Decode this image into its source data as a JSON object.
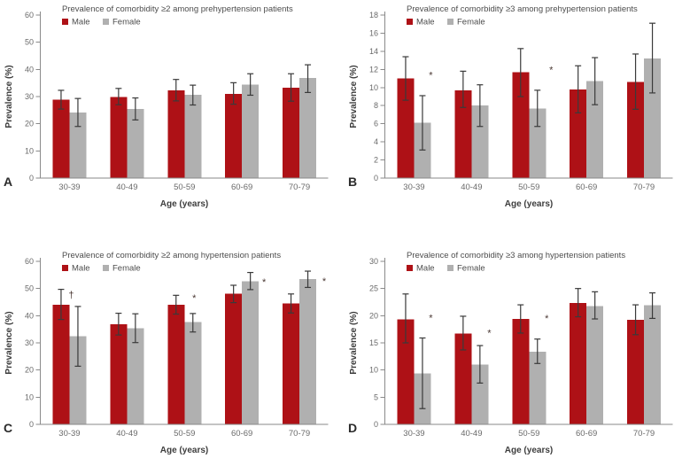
{
  "figure": {
    "background": "#ffffff",
    "colors": {
      "male": "#ae1116",
      "female": "#b0b0b0",
      "error_bar": "#3a3a3a",
      "axis": "#8a8a8a",
      "tick_text": "#6a6a6a",
      "title_text": "#4d4d4d",
      "label_text": "#3d3d3d",
      "annotation": "#4a3833",
      "panel_letter": "#2b2b2b"
    }
  },
  "chart_data": [
    {
      "type": "bar",
      "panel_label": "A",
      "title": "Prevalence of comorbidity ≥2 among prehypertension patients",
      "xlabel": "Age (years)",
      "ylabel": "Prevalence (%)",
      "ylim": [
        0,
        60
      ],
      "ytick_step": 10,
      "legend_position": "top-left-inside",
      "grid": false,
      "categories": [
        "30-39",
        "40-49",
        "50-59",
        "60-69",
        "70-79"
      ],
      "series": [
        {
          "name": "Male",
          "values": [
            28.8,
            29.9,
            32.3,
            31.0,
            33.3
          ],
          "ci_low": [
            25.4,
            27.0,
            28.4,
            27.2,
            28.3
          ],
          "ci_high": [
            32.3,
            33.0,
            36.3,
            35.1,
            38.4
          ]
        },
        {
          "name": "Female",
          "values": [
            24.1,
            25.5,
            30.6,
            34.4,
            36.9
          ],
          "ci_low": [
            19.0,
            21.4,
            26.9,
            30.5,
            31.5
          ],
          "ci_high": [
            29.3,
            29.5,
            34.2,
            38.4,
            41.7
          ]
        }
      ],
      "annotations": []
    },
    {
      "type": "bar",
      "panel_label": "B",
      "title": "Prevalence of comorbidity ≥3 among prehypertension patients",
      "xlabel": "Age (years)",
      "ylabel": "Prevalence (%)",
      "ylim": [
        0,
        18
      ],
      "ytick_step": 2,
      "legend_position": "top-left-inside",
      "grid": false,
      "categories": [
        "30-39",
        "40-49",
        "50-59",
        "60-69",
        "70-79"
      ],
      "series": [
        {
          "name": "Male",
          "values": [
            11.0,
            9.7,
            11.7,
            9.8,
            10.6
          ],
          "ci_low": [
            8.6,
            7.8,
            9.0,
            7.2,
            7.6
          ],
          "ci_high": [
            13.4,
            11.8,
            14.3,
            12.4,
            13.7
          ]
        },
        {
          "name": "Female",
          "values": [
            6.1,
            8.0,
            7.7,
            10.7,
            13.2
          ],
          "ci_low": [
            3.1,
            5.7,
            5.7,
            8.1,
            9.4
          ],
          "ci_high": [
            9.1,
            10.3,
            9.7,
            13.3,
            17.1
          ]
        }
      ],
      "annotations": [
        {
          "group": 0,
          "category": "30-39",
          "symbol": "*",
          "y": 11.6,
          "dx": 19
        },
        {
          "group": 2,
          "category": "50-59",
          "symbol": "*",
          "y": 12.2,
          "dx": 25
        }
      ]
    },
    {
      "type": "bar",
      "panel_label": "C",
      "title": "Prevalence of comorbidity ≥2 among hypertension patients",
      "xlabel": "Age (years)",
      "ylabel": "Prevalence (%)",
      "ylim": [
        0,
        60
      ],
      "ytick_step": 10,
      "legend_position": "top-left-inside",
      "grid": false,
      "categories": [
        "30-39",
        "40-49",
        "50-59",
        "60-69",
        "70-79"
      ],
      "series": [
        {
          "name": "Male",
          "values": [
            44.1,
            36.9,
            44.1,
            48.1,
            44.5
          ],
          "ci_low": [
            38.6,
            32.9,
            40.6,
            44.8,
            41.0
          ],
          "ci_high": [
            49.7,
            40.9,
            47.5,
            51.2,
            48.0
          ]
        },
        {
          "name": "Female",
          "values": [
            32.4,
            35.3,
            37.6,
            52.7,
            53.4
          ],
          "ci_low": [
            21.4,
            30.1,
            34.0,
            49.6,
            50.4
          ],
          "ci_high": [
            43.4,
            40.7,
            40.8,
            55.9,
            56.4
          ]
        }
      ],
      "annotations": [
        {
          "group": 0,
          "category": "30-39",
          "symbol": "†",
          "y": 47.8,
          "dx": 2
        },
        {
          "group": 2,
          "category": "50-59",
          "symbol": "*",
          "y": 47.3,
          "dx": 11
        },
        {
          "group": 3,
          "category": "60-69",
          "symbol": "*",
          "y": 53.2,
          "dx": 25
        },
        {
          "group": 4,
          "category": "70-79",
          "symbol": "*",
          "y": 53.4,
          "dx": 28
        }
      ]
    },
    {
      "type": "bar",
      "panel_label": "D",
      "title": "Prevalence of comorbidity ≥3 among hypertension patients",
      "xlabel": "Age (years)",
      "ylabel": "Prevalence (%)",
      "ylim": [
        0,
        30
      ],
      "ytick_step": 5,
      "legend_position": "top-left-inside",
      "grid": false,
      "categories": [
        "30-39",
        "40-49",
        "50-59",
        "60-69",
        "70-79"
      ],
      "series": [
        {
          "name": "Male",
          "values": [
            19.3,
            16.7,
            19.4,
            22.3,
            19.2
          ],
          "ci_low": [
            15.0,
            13.7,
            16.8,
            19.8,
            16.5
          ],
          "ci_high": [
            24.0,
            19.9,
            22.0,
            25.0,
            22.0
          ]
        },
        {
          "name": "Female",
          "values": [
            9.4,
            11.0,
            13.4,
            21.8,
            21.9
          ],
          "ci_low": [
            2.9,
            7.6,
            11.2,
            19.4,
            19.5
          ],
          "ci_high": [
            15.9,
            14.5,
            15.7,
            24.4,
            24.2
          ]
        }
      ],
      "annotations": [
        {
          "group": 0,
          "category": "30-39",
          "symbol": "*",
          "y": 20.0,
          "dx": 19
        },
        {
          "group": 1,
          "category": "40-49",
          "symbol": "*",
          "y": 17.2,
          "dx": 20
        },
        {
          "group": 2,
          "category": "50-59",
          "symbol": "*",
          "y": 19.9,
          "dx": 20
        }
      ]
    }
  ]
}
